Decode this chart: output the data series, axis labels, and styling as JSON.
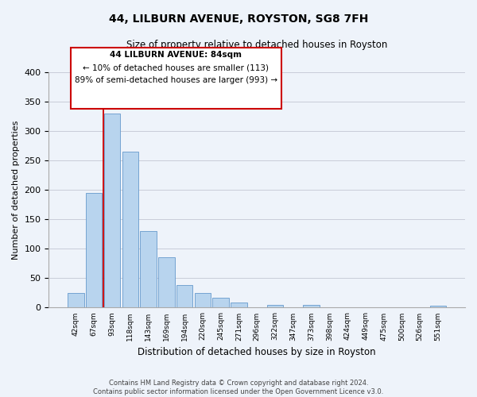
{
  "title": "44, LILBURN AVENUE, ROYSTON, SG8 7FH",
  "subtitle": "Size of property relative to detached houses in Royston",
  "xlabel": "Distribution of detached houses by size in Royston",
  "ylabel": "Number of detached properties",
  "bin_labels": [
    "42sqm",
    "67sqm",
    "93sqm",
    "118sqm",
    "143sqm",
    "169sqm",
    "194sqm",
    "220sqm",
    "245sqm",
    "271sqm",
    "296sqm",
    "322sqm",
    "347sqm",
    "373sqm",
    "398sqm",
    "424sqm",
    "449sqm",
    "475sqm",
    "500sqm",
    "526sqm",
    "551sqm"
  ],
  "bar_values": [
    25,
    195,
    330,
    265,
    130,
    85,
    38,
    25,
    17,
    8,
    0,
    4,
    0,
    4,
    0,
    0,
    0,
    0,
    0,
    0,
    3
  ],
  "bar_color": "#b8d4ee",
  "bar_edge_color": "#6699cc",
  "background_color": "#eef3fa",
  "grid_color": "#c8ccd8",
  "annotation_box_color": "#ffffff",
  "annotation_box_edge": "#cc0000",
  "annotation_line_color": "#cc0000",
  "annotation_text_line1": "44 LILBURN AVENUE: 84sqm",
  "annotation_text_line2": "← 10% of detached houses are smaller (113)",
  "annotation_text_line3": "89% of semi-detached houses are larger (993) →",
  "ylim": [
    0,
    400
  ],
  "yticks": [
    0,
    50,
    100,
    150,
    200,
    250,
    300,
    350,
    400
  ],
  "footer_line1": "Contains HM Land Registry data © Crown copyright and database right 2024.",
  "footer_line2": "Contains public sector information licensed under the Open Government Licence v3.0."
}
